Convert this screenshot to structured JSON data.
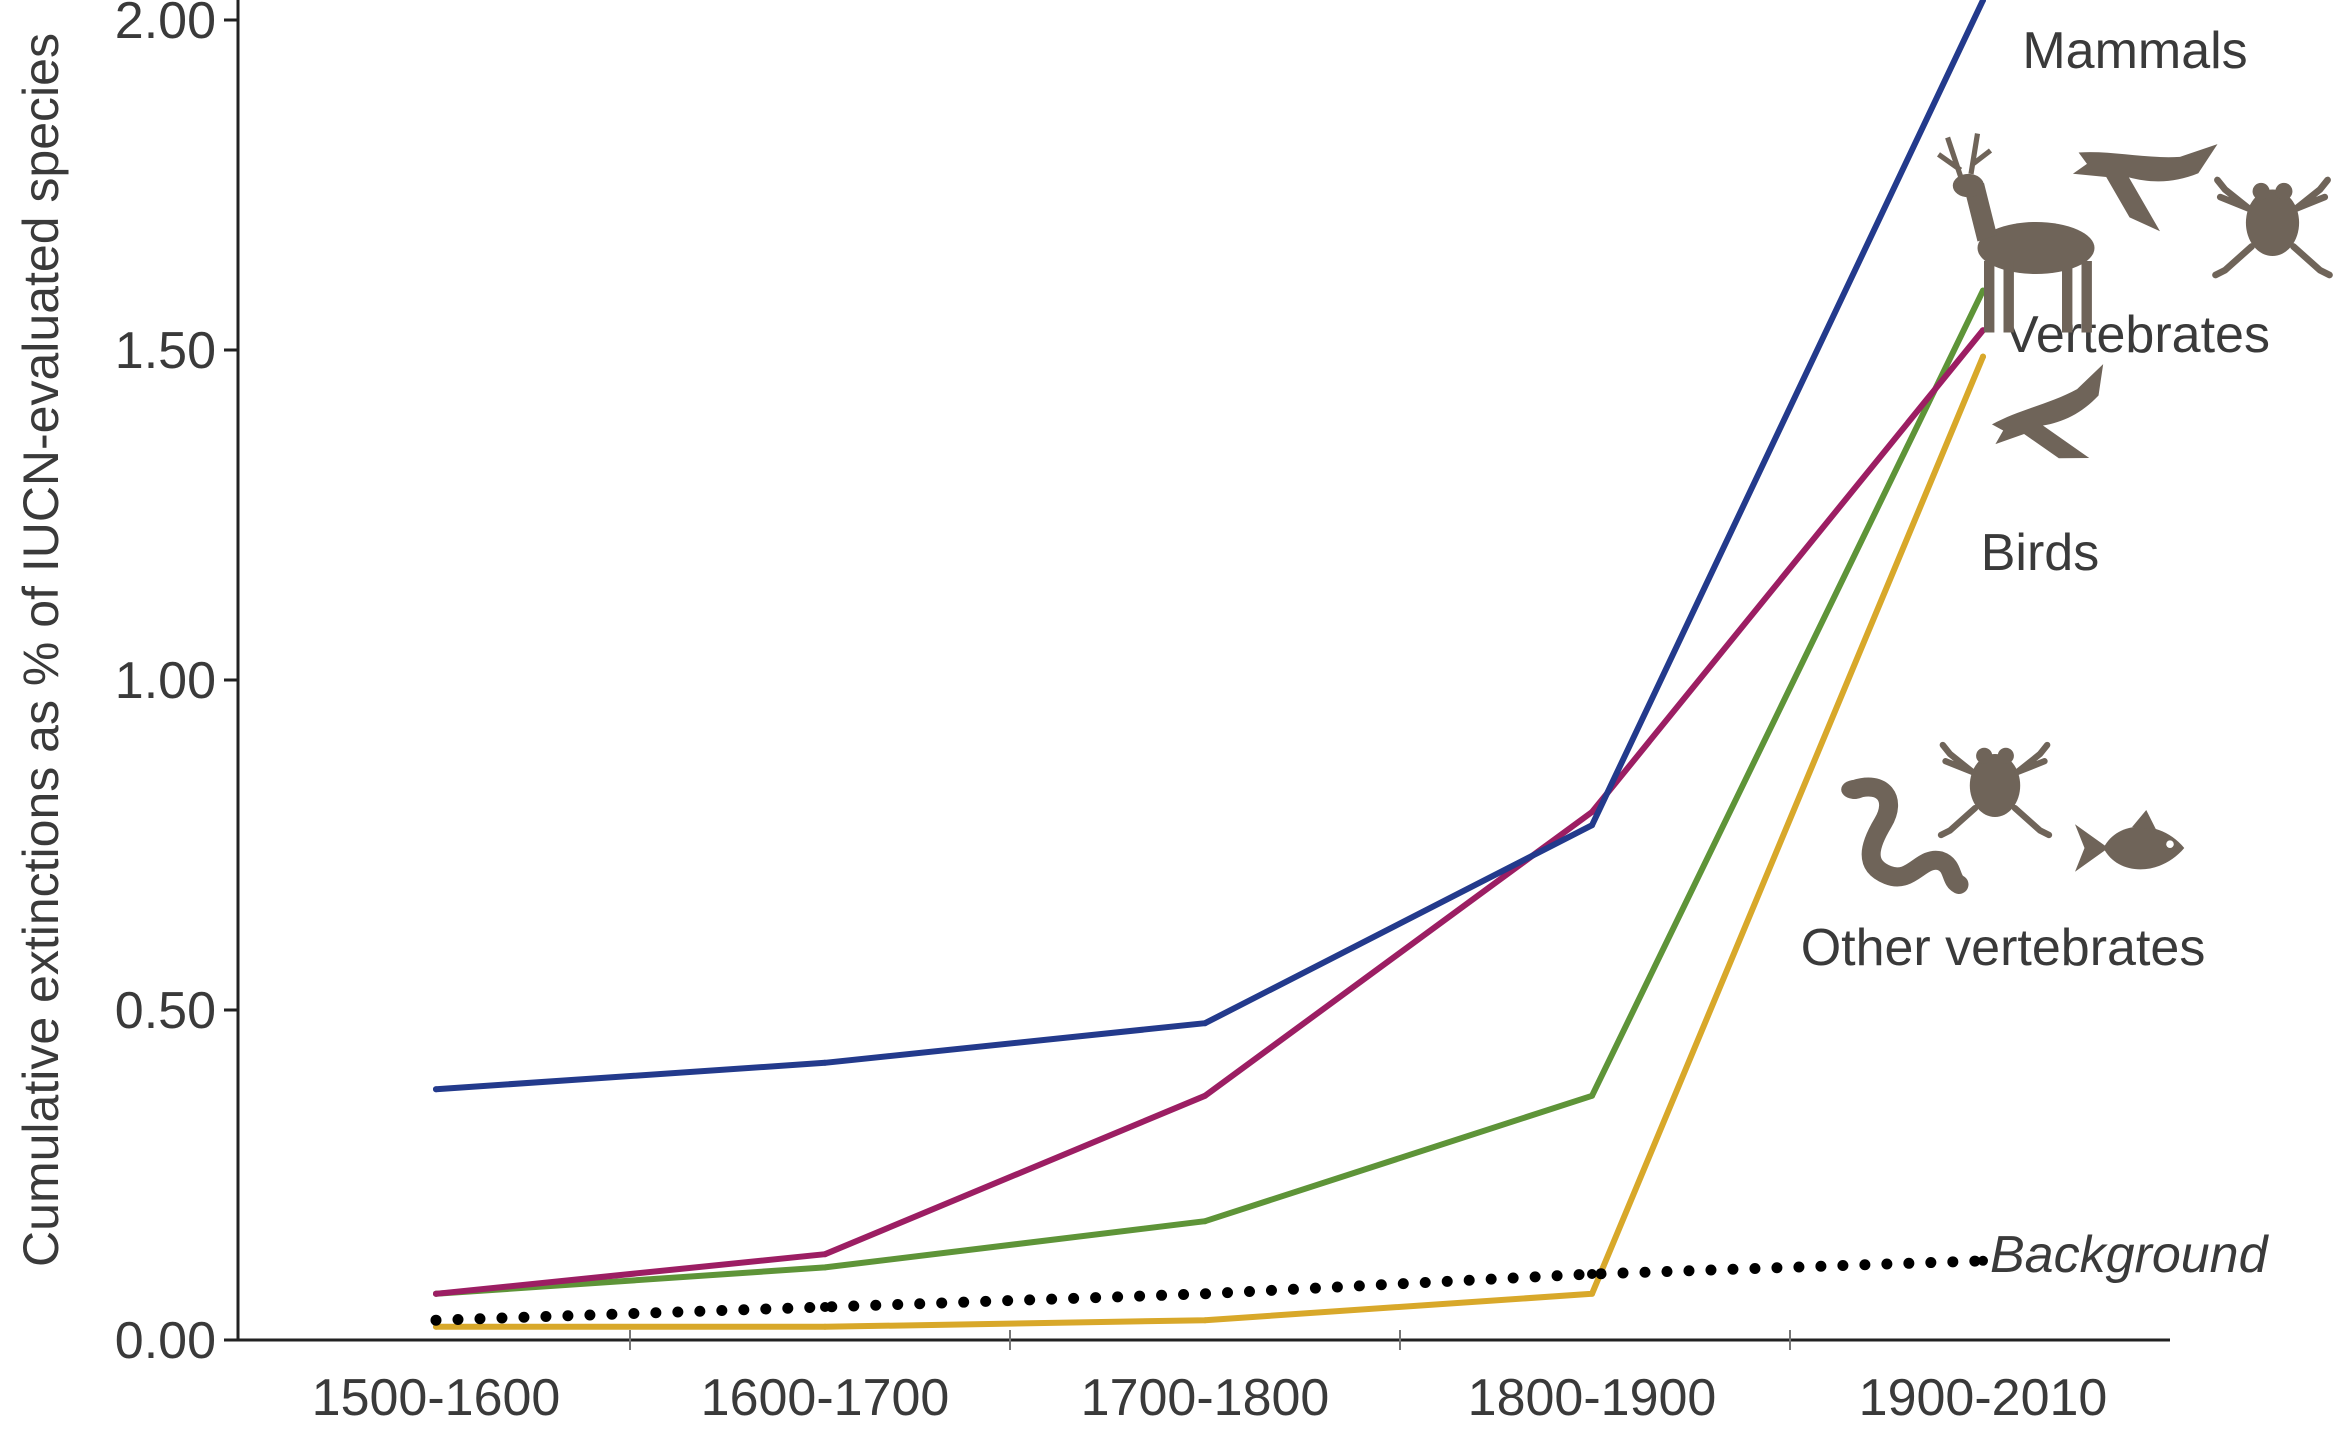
{
  "chart_data": {
    "type": "line",
    "ylabel": "Cumulative extinctions as % of IUCN-evaluated species",
    "xlabel": "",
    "categories": [
      "1500-1600",
      "1600-1700",
      "1700-1800",
      "1800-1900",
      "1900-2010"
    ],
    "ylim": [
      0,
      2.0
    ],
    "yticks": [
      "0.00",
      "0.50",
      "1.00",
      "1.50",
      "2.00"
    ],
    "grid": false,
    "legend": "direct labels at right",
    "series": [
      {
        "name": "Mammals",
        "color": "#233a8c",
        "style": "solid",
        "values": [
          0.38,
          0.42,
          0.48,
          0.78,
          2.03
        ]
      },
      {
        "name": "Birds",
        "color": "#9c1e63",
        "style": "solid",
        "values": [
          0.07,
          0.13,
          0.37,
          0.8,
          1.53
        ]
      },
      {
        "name": "Vertebrates",
        "color": "#5e9438",
        "style": "solid",
        "values": [
          0.07,
          0.11,
          0.18,
          0.37,
          1.59
        ]
      },
      {
        "name": "Other vertebrates",
        "color": "#d8a82a",
        "style": "solid",
        "values": [
          0.02,
          0.02,
          0.03,
          0.07,
          1.49
        ]
      },
      {
        "name": "Background",
        "color": "#000000",
        "style": "dotted",
        "values": [
          0.03,
          0.05,
          0.07,
          0.1,
          0.12
        ]
      }
    ],
    "icons": {
      "mammals": [
        "deer-icon",
        "bird-icon",
        "frog-icon"
      ],
      "birds": [
        "bird-icon"
      ],
      "other_vertebrates": [
        "snake-icon",
        "frog-icon",
        "fish-icon"
      ]
    },
    "icon_color": "#6f6459"
  }
}
